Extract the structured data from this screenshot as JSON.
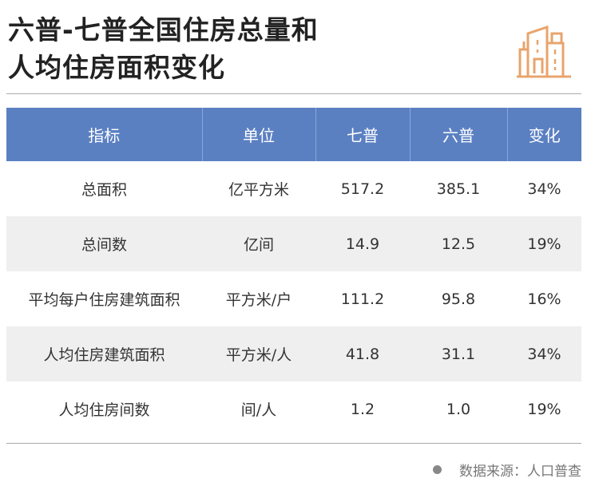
{
  "title": {
    "line1": "六普-七普全国住房总量和",
    "line2": "人均住房面积变化"
  },
  "logo_icon": "buildings-icon",
  "accent_color": "#e8a46c",
  "header_color": "#5b80c2",
  "table": {
    "headers": [
      "指标",
      "单位",
      "七普",
      "六普",
      "变化"
    ],
    "rows": [
      [
        "总面积",
        "亿平方米",
        "517.2",
        "385.1",
        "34%"
      ],
      [
        "总间数",
        "亿间",
        "14.9",
        "12.5",
        "19%"
      ],
      [
        "平均每户住房建筑面积",
        "平方米/户",
        "111.2",
        "95.8",
        "16%"
      ],
      [
        "人均住房建筑面积",
        "平方米/人",
        "41.8",
        "31.1",
        "34%"
      ],
      [
        "人均住房间数",
        "间/人",
        "1.2",
        "1.0",
        "19%"
      ]
    ]
  },
  "footer": {
    "source": "数据来源：人口普查"
  }
}
